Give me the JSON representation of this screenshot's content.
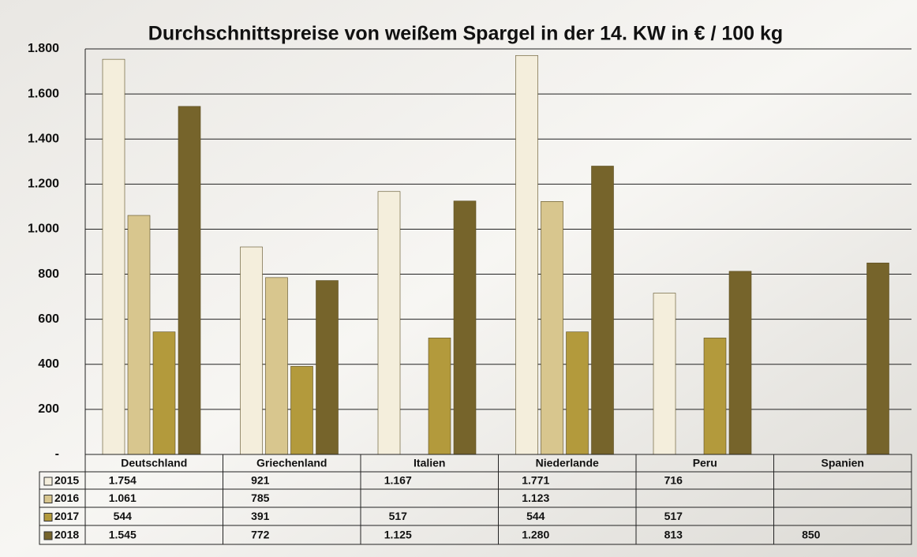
{
  "chart_data": {
    "type": "bar",
    "title": "Durchschnittspreise von weißem Spargel in der 14. KW in € / 100 kg",
    "categories": [
      "Deutschland",
      "Griechenland",
      "Italien",
      "Niederlande",
      "Peru",
      "Spanien"
    ],
    "series": [
      {
        "name": "2015",
        "color": "#f4eedc",
        "values": [
          1754,
          921,
          1167,
          1771,
          716,
          null
        ],
        "value_labels": [
          "1.754",
          "921",
          "1.167",
          "1.771",
          "716",
          null
        ]
      },
      {
        "name": "2016",
        "color": "#d8c68e",
        "values": [
          1061,
          785,
          null,
          1123,
          null,
          null
        ],
        "value_labels": [
          "1.061",
          "785",
          null,
          "1.123",
          null,
          null
        ]
      },
      {
        "name": "2017",
        "color": "#b39a3c",
        "values": [
          544,
          391,
          517,
          544,
          517,
          null
        ],
        "value_labels": [
          "544",
          "391",
          "517",
          "544",
          "517",
          null
        ]
      },
      {
        "name": "2018",
        "color": "#76642b",
        "values": [
          1545,
          772,
          1125,
          1280,
          813,
          850
        ],
        "value_labels": [
          "1.545",
          "772",
          "1.125",
          "1.280",
          "813",
          "850"
        ]
      }
    ],
    "ylim": [
      0,
      1800
    ],
    "yticks": [
      {
        "value": 0,
        "label": "-"
      },
      200,
      400,
      600,
      800,
      {
        "value": 1000,
        "label": "1.000"
      },
      {
        "value": 1200,
        "label": "1.200"
      },
      {
        "value": 1400,
        "label": "1.400"
      },
      {
        "value": 1600,
        "label": "1.600"
      },
      {
        "value": 1800,
        "label": "1.800"
      }
    ],
    "grid": true
  }
}
